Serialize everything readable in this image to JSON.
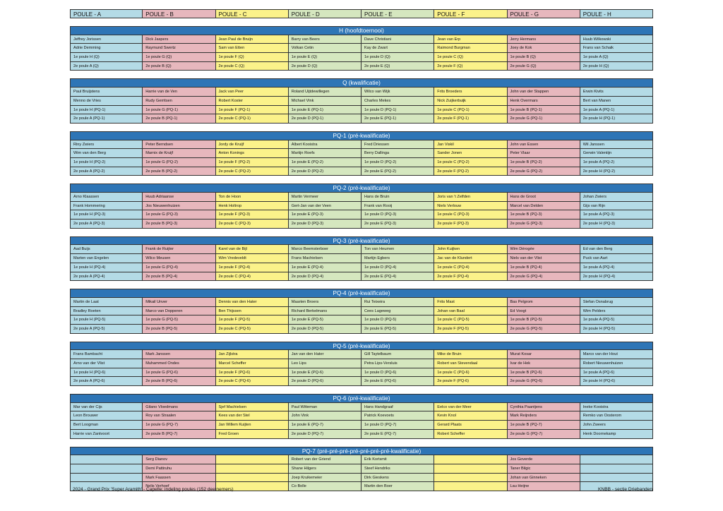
{
  "headers": [
    "POULE - A",
    "POULE - B",
    "POULE - C",
    "POULE - D",
    "POULE - E",
    "POULE - F",
    "POULE - G",
    "POULE - H"
  ],
  "sections": [
    {
      "title": "H (hoofdtoernooi)",
      "rows": [
        [
          "Jeffrey Jorissen",
          "Dick Jaspers",
          "Jean Paul de Bruijn",
          "Barry van Beers",
          "Dave Christiani",
          "Jean van Erp",
          "Jerry Hermans",
          "Huub Wilkowski"
        ],
        [
          "Adrie Demming",
          "Raymund Swertz",
          "Sam van Etten",
          "Volkan Cetin",
          "Kay de Zwart",
          "Raimond Burgman",
          "Joey de Kok",
          "Frans van Schaik"
        ],
        [
          "1e poule H (Q)",
          "1e poule G (Q)",
          "1e poule F (Q)",
          "1e poule E (Q)",
          "1e poule D (Q)",
          "1e poule C (Q)",
          "1e poule B (Q)",
          "1e poule A (Q)"
        ],
        [
          "2e poule A (Q)",
          "2e poule B (Q)",
          "2e poule C (Q)",
          "2e poule D (Q)",
          "2e poule E (Q)",
          "2e poule F (Q)",
          "2e poule G (Q)",
          "2e poule H (Q)"
        ]
      ]
    },
    {
      "title": "Q (kwalificatie)",
      "rows": [
        [
          "Paul Bruijstens",
          "Harrie van de Ven",
          "Jack van Peer",
          "Roland Uijtdewillegen",
          "Wilco van Wijk",
          "Frits Broeders",
          "John van der Stappen",
          "Erwin  Kivits"
        ],
        [
          "Menno de Vries",
          "Rudy Gerritsen",
          "Robert Koster",
          "Michael Vink",
          "Charles Mekes",
          "Nick Zuijkerbuijk",
          "Henk Overmars",
          "Bert van Manen"
        ],
        [
          "1e poule H (PQ-1)",
          "1e poule G (PQ-1)",
          "1e poule F (PQ-1)",
          "1e poule E (PQ-1)",
          "1e poule D (PQ-1)",
          "1e poule C (PQ-1)",
          "1e poule B (PQ-1)",
          "1e poule A (PQ-1)"
        ],
        [
          "2e poule A (PQ-1)",
          "2e poule B (PQ-1)",
          "2e poule C (PQ-1)",
          "2e poule D (PQ-1)",
          "2e poule E (PQ-1)",
          "2e poule F (PQ-1)",
          "2e poule G (PQ-1)",
          "2e poule H (PQ-1)"
        ]
      ]
    },
    {
      "title": "PQ-1 (pré-kwalificatie)",
      "rows": [
        [
          "Riny Zwiers",
          "Peter Berndsen",
          "Jordy de Kruijf",
          "Albert Kooistra",
          "Fred Driessen",
          "Jan Viskil",
          "John van Essen",
          "Wil Janssen"
        ],
        [
          "Wim van den Berg",
          "Marnix de Kruijf",
          "Anton Konings",
          "Martijn Roefs",
          "Berry Dallinga",
          "Sander Jonen",
          "Peter Vlaar",
          "Gerwin Valentijn"
        ],
        [
          "1e poule H (PQ-2)",
          "1e poule G (PQ-2)",
          "1e poule F (PQ-2)",
          "1e poule E (PQ-2)",
          "1e poule D (PQ-2)",
          "1e poule C (PQ-2)",
          "1e poule B (PQ-2)",
          "1e poule A (PQ-2)"
        ],
        [
          "2e poule A (PQ-2)",
          "2e poule B (PQ-2)",
          "2e poule C (PQ-2)",
          "2e poule D (PQ-2)",
          "2e poule E (PQ-2)",
          "2e poule F (PQ-2)",
          "2e poule G (PQ-2)",
          "2e poule H (PQ-2)"
        ]
      ]
    },
    {
      "title": "PQ-2 (pré-kwalificatie)",
      "rows": [
        [
          "Arno Klaassen",
          "Huub Adriaanse",
          "Ton de Hoon",
          "Martin Vermeer",
          "Hans de Bruin",
          "Joris van 't Zelfden",
          "Hans de Groot",
          "Johan Zwiers"
        ],
        [
          "Frank Hommering",
          "Jos Nieuwenhuizen",
          "Henk Holtrop",
          "Gert-Jan van der Veen",
          "Frank van Rooij",
          "Niels Verlouw",
          "Marcel van Delden",
          "Gijs van Rijn"
        ],
        [
          "1e poule H (PQ-3)",
          "1e poule G (PQ-3)",
          "1e poule F (PQ-3)",
          "1e poule E (PQ-3)",
          "1e poule D (PQ-3)",
          "1e poule C (PQ-3)",
          "1e poule B (PQ-3)",
          "1e poule A (PQ-3)"
        ],
        [
          "2e poule A (PQ-3)",
          "2e poule B (PQ-3)",
          "2e poule C (PQ-3)",
          "2e poule D (PQ-3)",
          "2e poule E (PQ-3)",
          "2e poule F (PQ-3)",
          "2e poule G (PQ-3)",
          "2e poule H (PQ-3)"
        ]
      ]
    },
    {
      "title": "PQ-3 (pré-kwalificatie)",
      "rows": [
        [
          "Aad Buijs",
          "Frank de Ruijter",
          "Karel van de Bijl",
          "Marco Beemsterboer",
          "Ton van Heumen",
          "John Kuijken",
          "Wim Dérogée",
          "Ed van den Berg"
        ],
        [
          "Marten van Engelen",
          "Wilco Meusen",
          "Wim Vredeveldt",
          "Frans Machielsen",
          "Martijn Egbers",
          "Jac van de Klundert",
          "Niels van der Vlist",
          "Puck van Aart"
        ],
        [
          "1e poule H (PQ-4)",
          "1e poule G (PQ-4)",
          "1e poule F (PQ-4)",
          "1e poule E (PQ-4)",
          "1e poule D (PQ-4)",
          "1e poule C (PQ-4)",
          "1e poule B (PQ-4)",
          "1e poule A (PQ-4)"
        ],
        [
          "2e poule A (PQ-4)",
          "2e poule B (PQ-4)",
          "2e poule C (PQ-4)",
          "2e poule D (PQ-4)",
          "2e poule E (PQ-4)",
          "2e poule F (PQ-4)",
          "2e poule G (PQ-4)",
          "2e poule H (PQ-4)"
        ]
      ]
    },
    {
      "title": "PQ-4 (pré-kwalificatie)",
      "rows": [
        [
          "Martin de Laat",
          "Mikail Unver",
          "Dennis van den Hater",
          "Maarten Broers",
          "Rui Teixeira",
          "Frits Mast",
          "Bas Pelgrom",
          "Stefan Osnabrug"
        ],
        [
          "Bradley Roeten",
          "Marco van Dopperen",
          "Ben Thijssen",
          "Richard Berkelmans",
          "Cees Lageweg",
          "Johan van Baal",
          "Ed Voogt",
          "Wim Pelders"
        ],
        [
          "1e poule H (PQ-5)",
          "1e poule G (PQ-5)",
          "1e poule F (PQ-5)",
          "1e poule E (PQ-5)",
          "1e poule D (PQ-5)",
          "1e poule C (PQ-5)",
          "1e poule B (PQ-5)",
          "1e poule A (PQ-5)"
        ],
        [
          "2e poule A (PQ-5)",
          "2e poule B (PQ-5)",
          "2e poule C (PQ-5)",
          "2e poule D (PQ-5)",
          "2e poule E (PQ-5)",
          "2e poule F (PQ-5)",
          "2e poule G (PQ-5)",
          "2e poule H (PQ-5)"
        ]
      ]
    },
    {
      "title": "PQ-5 (pré-kwalificatie)",
      "rows": [
        [
          "Frans Bambacht",
          "Mark Janssen",
          "Jan Zijlstra",
          "Jan van den Hater",
          "Gill Taytelbaum",
          "Mike de Bruin",
          "Murat Kosar",
          "Marco van der Hout"
        ],
        [
          "Arno van der Vlist",
          "Muhammed Ondes",
          "Marcel Scheffer",
          "Leo Lips",
          "Petra Lips-Versluis",
          "Robert van Stevendaal",
          "Ivar de Hek",
          "Robert Nieuwenhuizen"
        ],
        [
          "1e poule H (PQ-6)",
          "1e poule G (PQ-6)",
          "1e poule F (PQ-6)",
          "1e poule E (PQ-6)",
          "1e poule D (PQ-6)",
          "1e poule C (PQ-6)",
          "1e poule B (PQ-6)",
          "1e poule A (PQ-6)"
        ],
        [
          "2e poule A (PQ-6)",
          "2e poule B (PQ-6)",
          "2e poule C (PQ-6)",
          "2e poule D (PQ-6)",
          "2e poule E (PQ-6)",
          "2e poule F (PQ-6)",
          "2e poule G (PQ-6)",
          "2e poule H (PQ-6)"
        ]
      ]
    },
    {
      "title": "PQ-6 (pré-kwalificatie)",
      "rows": [
        [
          "Mar van der Cijs",
          "Gilano Vloedmans",
          "Sjef Machielsen",
          "Paul Witteman",
          "Hans Handgraaf",
          "Eelco van der Meer",
          "Cynthia Paantjens",
          "Ineke Kooistra"
        ],
        [
          "Leon Brouwer",
          "Roy van Straalen",
          "Kees van der Stel",
          "John Vink",
          "Patrick Koevoets",
          "Kevin Knol",
          "Mark Reijnders",
          "Remko van Oosterom"
        ],
        [
          "Bert Loogman",
          "1e poule G (PQ-7)",
          "Jan Willem Kuijten",
          "1e poule E (PQ-7)",
          "1e poule D (PQ-7)",
          "Gerard Plaats",
          "1e poule B (PQ-7)",
          "John Zweers"
        ],
        [
          "Harrie van Zantvoort",
          "2e poule B (PQ-7)",
          "Fred Groen",
          "2e poule D (PQ-7)",
          "2e poule E (PQ-7)",
          "Robert Scheffer",
          "2e poule G (PQ-7)",
          "Henk Doornekamp"
        ]
      ]
    },
    {
      "title": "PQ-7 (pré-pré-pré-pré-pré-pré-pré-kwalificatie)",
      "rows": [
        [
          "",
          "Serg Dianov",
          "",
          "Robert van der Griend",
          "Erik Kortsmit",
          "",
          "Jos Goverde",
          ""
        ],
        [
          "",
          "Demi Pattiruhu",
          "",
          "Shane Hilgers",
          "Steef Hendriks",
          "",
          "Taner Bilgic",
          ""
        ],
        [
          "",
          "Mark Faassen",
          "",
          "Joep Kruikemeier",
          "Dirk Gieskens",
          "",
          "Johan van Ginneken",
          ""
        ],
        [
          "",
          "Nelis Verhoef",
          "",
          "Co Bolle",
          "Martin den Boer",
          "",
          "Lau Heijne",
          ""
        ]
      ]
    }
  ],
  "footer": {
    "left": "2024 - Grand Prix 'Super Aramith' - Capelle: indeling poules (152 deelnemers)",
    "right": "KNBB - sectie Driebanden"
  }
}
